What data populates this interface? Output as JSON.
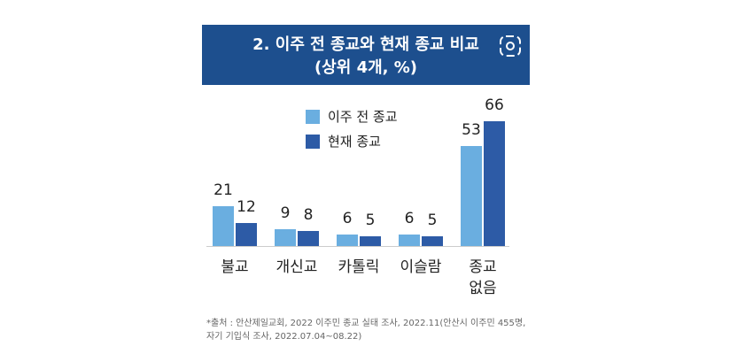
{
  "chart_data": {
    "type": "bar",
    "title": "2. 이주 전 종교와 현재 종교 비교",
    "subtitle": "(상위 4개, %)",
    "categories": [
      "불교",
      "개신교",
      "카톨릭",
      "이슬람",
      "종교\n없음"
    ],
    "series": [
      {
        "name": "이주 전 종교",
        "color": "#6aaee0",
        "values": [
          21,
          9,
          6,
          6,
          53
        ]
      },
      {
        "name": "현재 종교",
        "color": "#2d5ba6",
        "values": [
          12,
          8,
          5,
          5,
          66
        ]
      }
    ],
    "source": [
      "*출처 : 안산제일교회, 2022 이주민 종교 실태 조사, 2022.11(안산시 이주민 455명,",
      "자기 기입식 조사, 2022.07.04~08.22)"
    ]
  }
}
